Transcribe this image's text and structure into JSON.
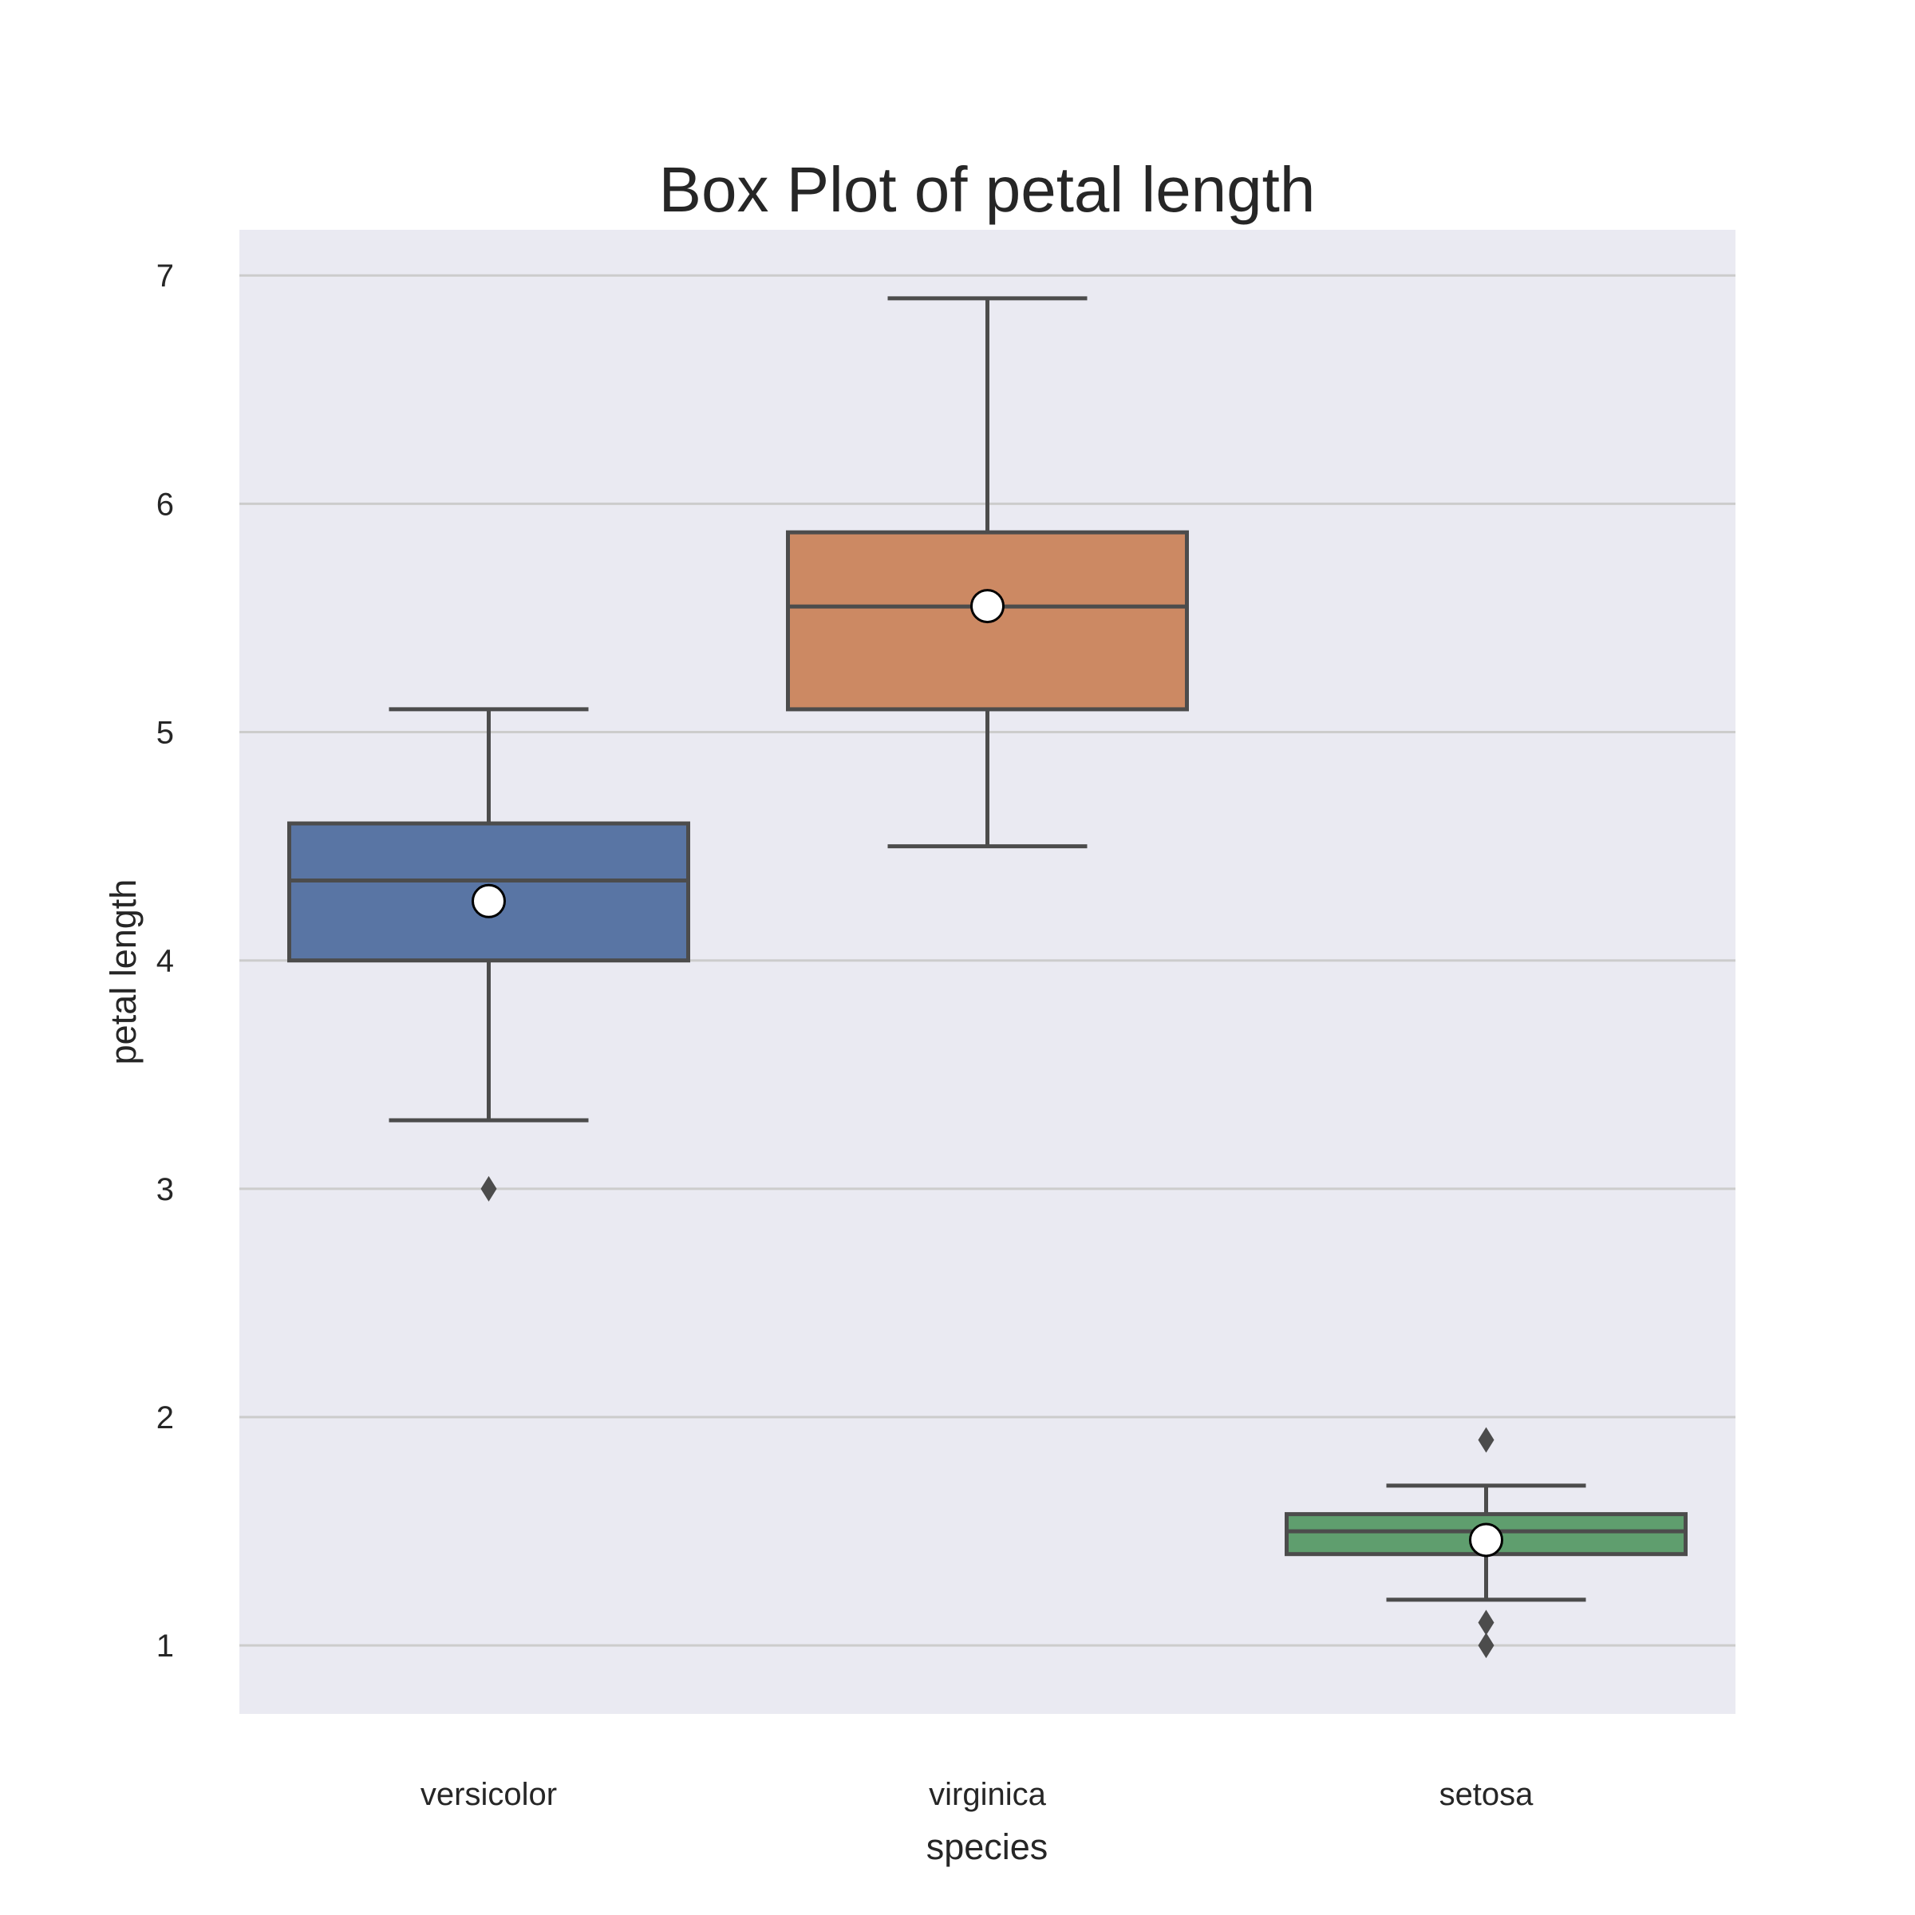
{
  "chart_data": {
    "type": "box",
    "title": "Box Plot of petal length",
    "xlabel": "species",
    "ylabel": "petal length",
    "ylim": [
      0.7,
      7.2
    ],
    "yticks": [
      1,
      2,
      3,
      4,
      5,
      6,
      7
    ],
    "grid": "horizontal",
    "background_color": "#EAEAF2",
    "categories": [
      "versicolor",
      "virginica",
      "setosa"
    ],
    "boxes": [
      {
        "category": "versicolor",
        "color": "#5975A4",
        "whisker_low": 3.3,
        "q1": 4.0,
        "median": 4.35,
        "q3": 4.6,
        "whisker_high": 5.1,
        "mean": 4.26,
        "outliers": [
          3.0
        ]
      },
      {
        "category": "virginica",
        "color": "#CC8963",
        "whisker_low": 4.5,
        "q1": 5.1,
        "median": 5.55,
        "q3": 5.875,
        "whisker_high": 6.9,
        "mean": 5.552,
        "outliers": []
      },
      {
        "category": "setosa",
        "color": "#5F9E6E",
        "whisker_low": 1.2,
        "q1": 1.4,
        "median": 1.5,
        "q3": 1.575,
        "whisker_high": 1.7,
        "mean": 1.462,
        "outliers": [
          1.9,
          1.1,
          1.0
        ]
      }
    ]
  }
}
